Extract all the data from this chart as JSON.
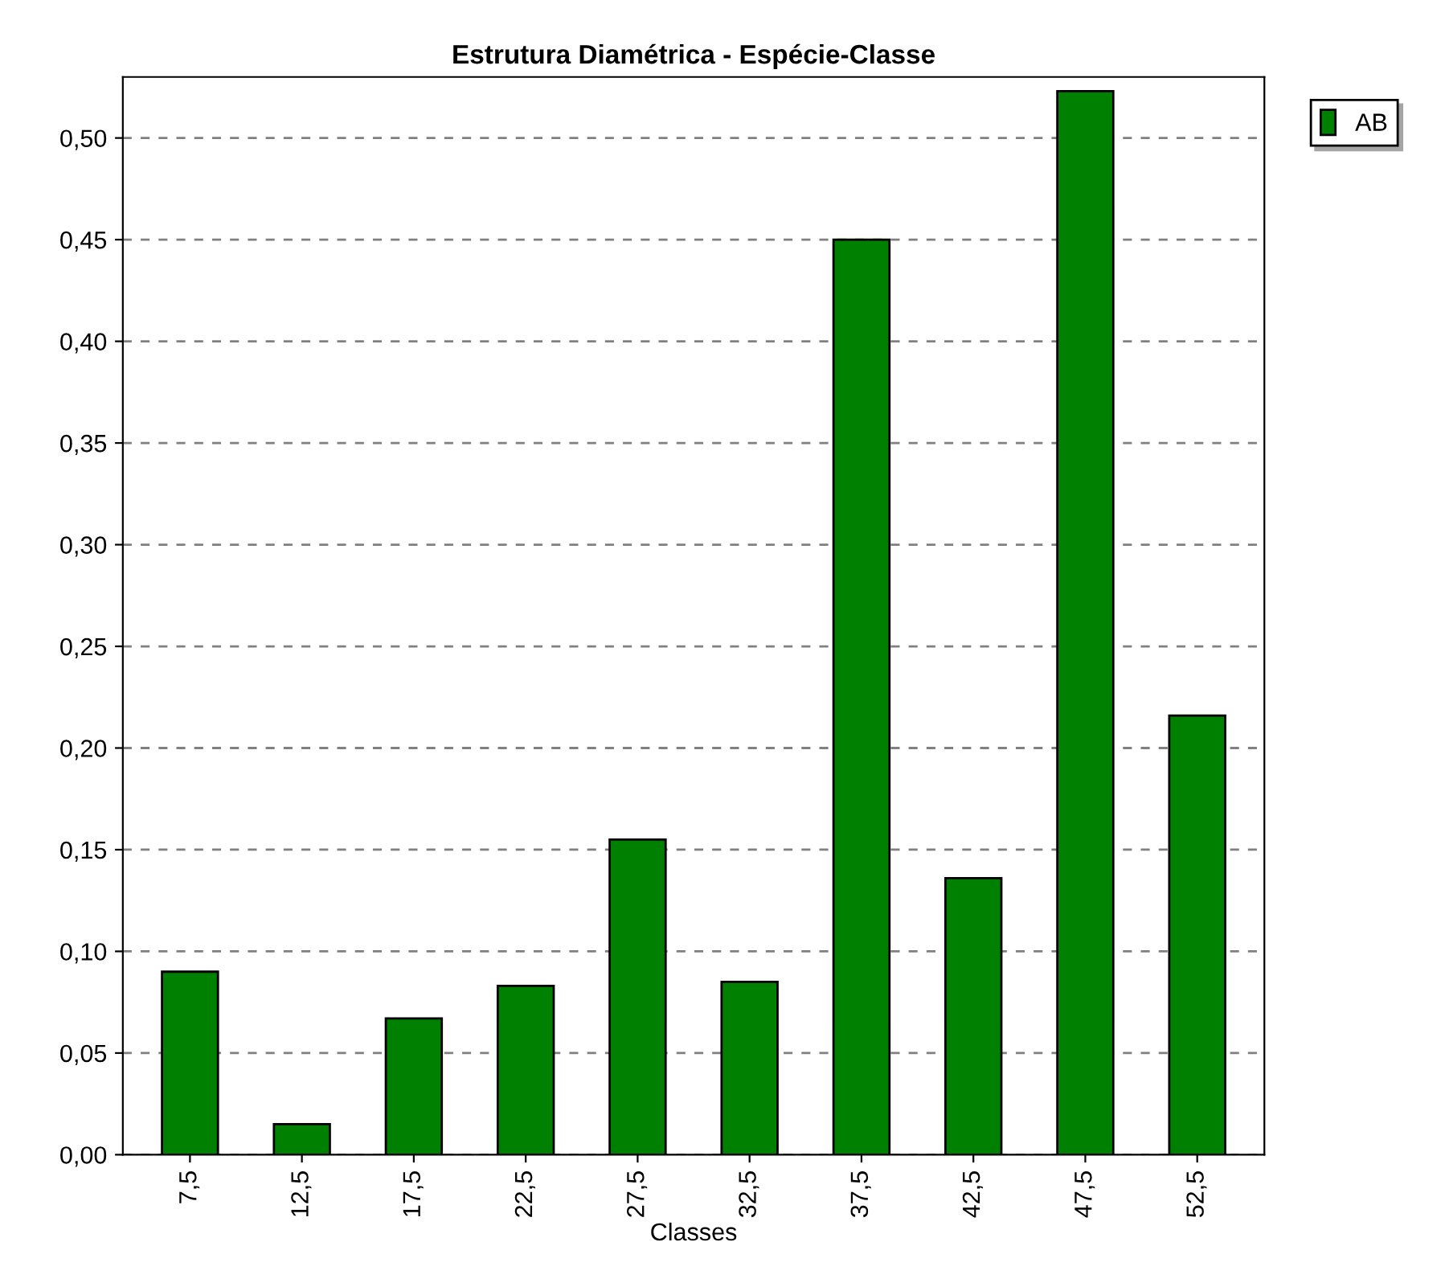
{
  "chart_data": {
    "type": "bar",
    "title": "Estrutura Diamétrica - Espécie-Classe",
    "xlabel": "Classes",
    "categories": [
      "7,5",
      "12,5",
      "17,5",
      "22,5",
      "27,5",
      "32,5",
      "37,5",
      "42,5",
      "47,5",
      "52,5"
    ],
    "series": [
      {
        "name": "AB",
        "color": "#008000",
        "values": [
          0.09,
          0.015,
          0.067,
          0.083,
          0.155,
          0.085,
          0.45,
          0.136,
          0.523,
          0.216
        ]
      }
    ],
    "ylim": [
      0,
      0.53
    ],
    "yticks": [
      {
        "value": 0,
        "label": "0,00"
      },
      {
        "value": 0.05,
        "label": "0,05"
      },
      {
        "value": 0.1,
        "label": "0,10"
      },
      {
        "value": 0.15,
        "label": "0,15"
      },
      {
        "value": 0.2,
        "label": "0,20"
      },
      {
        "value": 0.25,
        "label": "0,25"
      },
      {
        "value": 0.3,
        "label": "0,30"
      },
      {
        "value": 0.35,
        "label": "0,35"
      },
      {
        "value": 0.4,
        "label": "0,40"
      },
      {
        "value": 0.45,
        "label": "0,45"
      },
      {
        "value": 0.5,
        "label": "0,50"
      }
    ],
    "grid": "y",
    "legend": "top right"
  }
}
